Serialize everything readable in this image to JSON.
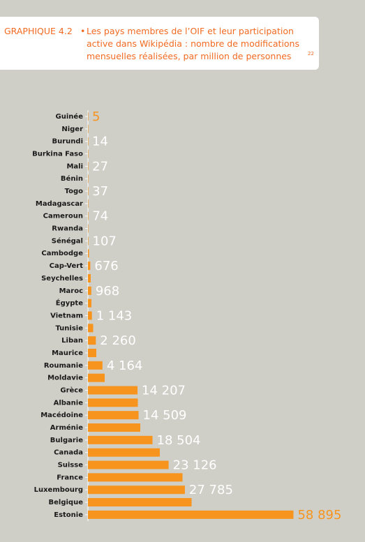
{
  "chart_data": {
    "type": "barh",
    "label": "GRAPHIQUE 4.2",
    "title_lines": [
      "Les pays membres de l’OIF et leur participation",
      "active dans Wikipédia : nombre de modifications",
      "mensuelles réalisées, par million de personnes"
    ],
    "note_ref": "22",
    "categories": [
      "Guinée",
      "Niger",
      "Burundi",
      "Burkina Faso",
      "Mali",
      "Bénin",
      "Togo",
      "Madagascar",
      "Cameroun",
      "Rwanda",
      "Sénégal",
      "Cambodge",
      "Cap-Vert",
      "Seychelles",
      "Maroc",
      "Égypte",
      "Vietnam",
      "Tunisie",
      "Liban",
      "Maurice",
      "Roumanie",
      "Moldavie",
      "Grèce",
      "Albanie",
      "Macédoine",
      "Arménie",
      "Bulgarie",
      "Canada",
      "Suisse",
      "France",
      "Luxembourg",
      "Belgique",
      "Estonie"
    ],
    "values": [
      5,
      8,
      14,
      20,
      27,
      30,
      37,
      50,
      74,
      90,
      107,
      300,
      676,
      800,
      968,
      1000,
      1143,
      1500,
      2260,
      2400,
      4164,
      4800,
      14207,
      14300,
      14509,
      15000,
      18504,
      20600,
      23126,
      27100,
      27785,
      29700,
      58895
    ],
    "value_labels": [
      "5",
      null,
      "14",
      null,
      "27",
      null,
      "37",
      null,
      "74",
      null,
      "107",
      null,
      "676",
      null,
      "968",
      null,
      "1 143",
      null,
      "2 260",
      null,
      "4 164",
      null,
      "14 207",
      null,
      "14 509",
      null,
      "18 504",
      null,
      "23 126",
      null,
      "27 785",
      null,
      "58 895"
    ],
    "xlim": [
      0,
      60000
    ],
    "color": "#f7941d",
    "value_label_color": "#ffffff",
    "highlight_label_color": "#f7941d",
    "highlight_indices": [
      0,
      32
    ]
  }
}
